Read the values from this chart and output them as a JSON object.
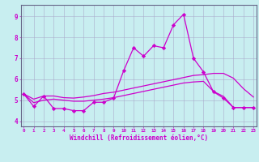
{
  "xlabel": "Windchill (Refroidissement éolien,°C)",
  "bg_color": "#c8eef0",
  "line_color": "#cc00cc",
  "grid_color": "#aaaacc",
  "spine_color": "#666688",
  "yticks": [
    4,
    5,
    6,
    7,
    8,
    9
  ],
  "xticks": [
    0,
    1,
    2,
    3,
    4,
    5,
    6,
    7,
    8,
    9,
    10,
    11,
    12,
    13,
    14,
    15,
    16,
    17,
    18,
    19,
    20,
    21,
    22,
    23
  ],
  "line1_x": [
    0,
    1,
    2,
    3,
    4,
    5,
    6,
    7,
    8,
    9,
    10,
    11,
    12,
    13,
    14,
    15,
    16,
    17,
    18,
    19,
    20,
    21,
    22,
    23
  ],
  "line1_y": [
    5.3,
    4.7,
    5.2,
    4.6,
    4.6,
    4.5,
    4.5,
    4.9,
    4.9,
    5.1,
    6.4,
    7.5,
    7.1,
    7.6,
    7.5,
    8.6,
    9.1,
    7.0,
    6.35,
    5.4,
    5.1,
    4.65,
    4.65,
    4.65
  ],
  "line2_x": [
    0,
    1,
    2,
    3,
    4,
    5,
    6,
    7,
    8,
    9,
    10,
    11,
    12,
    13,
    14,
    15,
    16,
    17,
    18,
    19,
    20,
    21,
    22,
    23
  ],
  "line2_y": [
    5.3,
    5.05,
    5.2,
    5.2,
    5.12,
    5.1,
    5.15,
    5.22,
    5.32,
    5.38,
    5.48,
    5.58,
    5.68,
    5.78,
    5.88,
    5.98,
    6.08,
    6.18,
    6.22,
    6.28,
    6.28,
    6.05,
    5.55,
    5.15
  ],
  "line3_x": [
    0,
    1,
    2,
    3,
    4,
    5,
    6,
    7,
    8,
    9,
    10,
    11,
    12,
    13,
    14,
    15,
    16,
    17,
    18,
    19,
    20,
    21,
    22,
    23
  ],
  "line3_y": [
    5.3,
    4.88,
    5.0,
    5.05,
    5.0,
    4.95,
    4.95,
    5.0,
    5.05,
    5.12,
    5.22,
    5.32,
    5.42,
    5.52,
    5.62,
    5.72,
    5.82,
    5.87,
    5.9,
    5.42,
    5.18,
    4.65,
    4.65,
    4.65
  ],
  "xlim_left": -0.3,
  "xlim_right": 23.3,
  "ylim_bottom": 3.75,
  "ylim_top": 9.55
}
